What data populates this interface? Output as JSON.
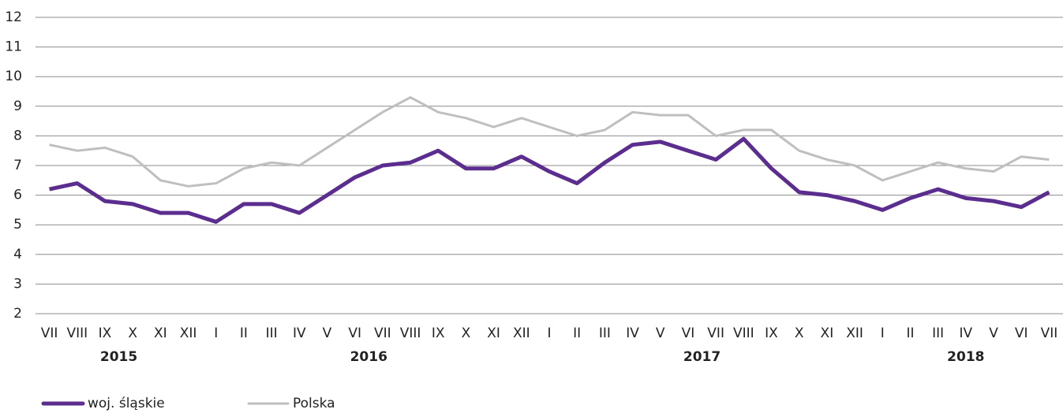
{
  "chart_data": {
    "type": "line",
    "groups": [
      {
        "label": "2015",
        "categories": [
          "VII",
          "VIII",
          "IX",
          "X",
          "XI",
          "XII"
        ]
      },
      {
        "label": "2016",
        "categories": [
          "I",
          "II",
          "III",
          "IV",
          "V",
          "VI",
          "VII",
          "VIII",
          "IX",
          "X",
          "XI",
          "XII"
        ]
      },
      {
        "label": "2017",
        "categories": [
          "I",
          "II",
          "III",
          "IV",
          "V",
          "VI",
          "VII",
          "VIII",
          "IX",
          "X",
          "XI",
          "XII"
        ]
      },
      {
        "label": "2018",
        "categories": [
          "I",
          "II",
          "III",
          "IV",
          "V",
          "VI",
          "VII"
        ]
      }
    ],
    "series": [
      {
        "name": "woj. śląskie",
        "color": "#5b2d8e",
        "width": 5,
        "values": [
          6.2,
          6.4,
          5.8,
          5.7,
          5.4,
          5.4,
          5.1,
          5.7,
          5.7,
          5.4,
          6.0,
          6.6,
          7.0,
          7.1,
          7.5,
          6.9,
          6.9,
          7.3,
          6.8,
          6.4,
          7.1,
          7.7,
          7.8,
          7.5,
          7.2,
          7.9,
          6.9,
          6.1,
          6.0,
          5.8,
          5.5,
          5.9,
          6.2,
          5.9,
          5.8,
          5.6,
          6.1
        ]
      },
      {
        "name": "Polska",
        "color": "#bfbfbf",
        "width": 3,
        "values": [
          7.7,
          7.5,
          7.6,
          7.3,
          6.5,
          6.3,
          6.4,
          6.9,
          7.1,
          7.0,
          7.6,
          8.2,
          8.8,
          9.3,
          8.8,
          8.6,
          8.3,
          8.6,
          8.3,
          8.0,
          8.2,
          8.8,
          8.7,
          8.7,
          8.0,
          8.2,
          8.2,
          7.5,
          7.2,
          7.0,
          6.5,
          6.8,
          7.1,
          6.9,
          6.8,
          7.3,
          7.2
        ]
      }
    ],
    "ylim": [
      2,
      12
    ],
    "yticks": [
      2,
      3,
      4,
      5,
      6,
      7,
      8,
      9,
      10,
      11,
      12
    ],
    "grid": true,
    "legend": "bottom-left"
  }
}
